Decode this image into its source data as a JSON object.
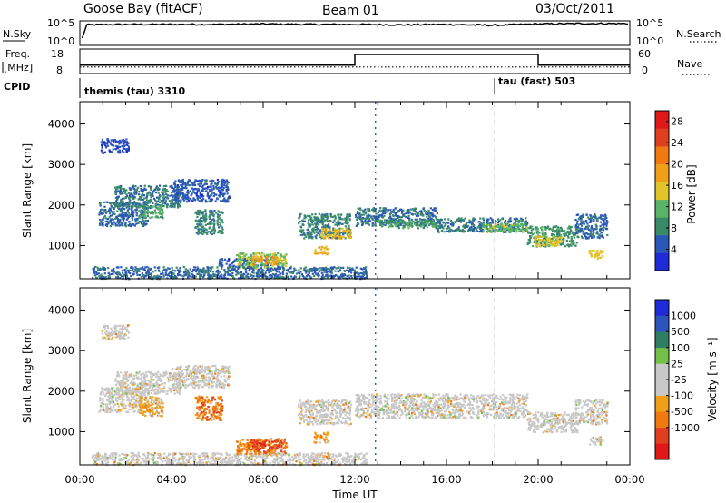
{
  "header": {
    "station": "Goose Bay (fitACF)",
    "beam": "Beam 01",
    "date": "03/Oct/2011"
  },
  "panels": {
    "nsky": {
      "label": "N.Sky",
      "tick_hi": "10^5",
      "tick_lo": "10^0"
    },
    "nsearch": {
      "label": "N.Search",
      "tick_hi": "10^5",
      "tick_lo": "10^0"
    },
    "freq": {
      "label_1": "Freq.",
      "label_2": "[MHz]",
      "tick_hi": "18",
      "tick_lo": "8"
    },
    "nave": {
      "label": "Nave",
      "tick_hi": "60",
      "tick_lo": "0"
    },
    "cpid": {
      "label": "CPID",
      "mode_1": "themis (tau) 3310",
      "mode_2": "tau (fast) 503"
    }
  },
  "colors": {
    "power": [
      "#1e2bd6",
      "#2b58b8",
      "#3a8a6a",
      "#5ab468",
      "#e0c428",
      "#f0a018",
      "#f07a10",
      "#e04020",
      "#e01818"
    ],
    "velocity": [
      "#1e2bd6",
      "#2c55bc",
      "#2f7d62",
      "#72c04a",
      "#c8c8c8",
      "#c8c8c8",
      "#f0a018",
      "#f07a10",
      "#e04020",
      "#e01818"
    ],
    "gray_stripe": "#c8c8c8"
  },
  "chart_data": [
    {
      "type": "line",
      "name": "status-panels",
      "x_unit": "hours UT",
      "series": [
        {
          "id": "nsky",
          "x": [
            0.1,
            0.3,
            2,
            4,
            6,
            8,
            10,
            12,
            14,
            16,
            18,
            20,
            22,
            24
          ],
          "values": [
            1.2,
            4.3,
            4.4,
            4.4,
            4.4,
            4.5,
            4.4,
            4.4,
            4.3,
            4.4,
            4.2,
            4.5,
            4.6,
            4.6
          ]
        },
        {
          "id": "nave",
          "x": [
            0,
            12,
            12,
            20,
            20,
            24
          ],
          "values": [
            20,
            20,
            48,
            48,
            20,
            20
          ]
        },
        {
          "id": "freq",
          "x": [
            0,
            12,
            12,
            20,
            20,
            24
          ],
          "values": [
            10.5,
            10.5,
            10.5,
            10.5,
            10.5,
            10.5
          ]
        }
      ],
      "cpid_change_hour": 18.1
    },
    {
      "type": "heatmap",
      "name": "power",
      "title": "",
      "ylabel": "Slant Range [km]",
      "xlabel": "",
      "xlim": [
        0,
        24
      ],
      "ylim": [
        180,
        4550
      ],
      "x_ticks": [
        "00:00",
        "04:00",
        "08:00",
        "12:00",
        "16:00",
        "20:00",
        "00:00"
      ],
      "y_ticks": [
        1000,
        2000,
        3000,
        4000
      ],
      "colorbar": {
        "label": "Power [dB]",
        "ticks": [
          4,
          8,
          12,
          16,
          20,
          24,
          28
        ],
        "range": [
          0,
          30
        ]
      },
      "regions": [
        {
          "t0": 0.8,
          "t1": 3.0,
          "r0": 1500,
          "r1": 2100,
          "v": 6
        },
        {
          "t0": 1.5,
          "t1": 4.4,
          "r0": 1950,
          "r1": 2500,
          "v": 7
        },
        {
          "t0": 2.5,
          "t1": 3.6,
          "r0": 1700,
          "r1": 2000,
          "v": 10
        },
        {
          "t0": 4.0,
          "t1": 6.5,
          "r0": 2100,
          "r1": 2650,
          "v": 5
        },
        {
          "t0": 5.0,
          "t1": 6.2,
          "r0": 1300,
          "r1": 1900,
          "v": 8
        },
        {
          "t0": 6.0,
          "t1": 8.3,
          "r0": 500,
          "r1": 700,
          "v": 5
        },
        {
          "t0": 6.8,
          "t1": 9.0,
          "r0": 450,
          "r1": 850,
          "v": 13
        },
        {
          "t0": 7.5,
          "t1": 8.6,
          "r0": 550,
          "r1": 750,
          "v": 19
        },
        {
          "t0": 9.5,
          "t1": 11.8,
          "r0": 1200,
          "r1": 1800,
          "v": 8
        },
        {
          "t0": 10.5,
          "t1": 11.8,
          "r0": 1200,
          "r1": 1450,
          "v": 16
        },
        {
          "t0": 10.2,
          "t1": 10.8,
          "r0": 800,
          "r1": 1000,
          "v": 17
        },
        {
          "t0": 12.0,
          "t1": 15.6,
          "r0": 1500,
          "r1": 1950,
          "v": 7
        },
        {
          "t0": 13.0,
          "t1": 15.5,
          "r0": 1450,
          "r1": 1650,
          "v": 10
        },
        {
          "t0": 15.5,
          "t1": 19.5,
          "r0": 1350,
          "r1": 1700,
          "v": 7
        },
        {
          "t0": 17.5,
          "t1": 19.5,
          "r0": 1350,
          "r1": 1550,
          "v": 12
        },
        {
          "t0": 19.5,
          "t1": 21.7,
          "r0": 1000,
          "r1": 1500,
          "v": 9
        },
        {
          "t0": 19.8,
          "t1": 21.0,
          "r0": 1000,
          "r1": 1250,
          "v": 15
        },
        {
          "t0": 21.6,
          "t1": 23.0,
          "r0": 1200,
          "r1": 1800,
          "v": 6
        },
        {
          "t0": 22.2,
          "t1": 22.8,
          "r0": 700,
          "r1": 900,
          "v": 16
        },
        {
          "t0": 0.5,
          "t1": 12.5,
          "r0": 200,
          "r1": 500,
          "v": 6
        },
        {
          "t0": 0.9,
          "t1": 2.1,
          "r0": 3300,
          "r1": 3650,
          "v": 4
        }
      ],
      "stripes": [
        {
          "t": 12.9,
          "r0": 200,
          "r1": 4550,
          "v": 6
        },
        {
          "t": 18.1,
          "r0": 200,
          "r1": 4550,
          "gray": true
        }
      ]
    },
    {
      "type": "heatmap",
      "name": "velocity",
      "title": "",
      "ylabel": "Slant Range [km]",
      "xlabel": "Time UT",
      "xlim": [
        0,
        24
      ],
      "ylim": [
        180,
        4550
      ],
      "x_ticks": [
        "00:00",
        "04:00",
        "08:00",
        "12:00",
        "16:00",
        "20:00",
        "00:00"
      ],
      "y_ticks": [
        1000,
        2000,
        3000,
        4000
      ],
      "colorbar": {
        "label": "Velocity [m s⁻¹]",
        "ticks": [
          "1000",
          "500",
          "100",
          "25",
          "-25",
          "-100",
          "-500",
          "-1000"
        ]
      },
      "regions": [
        {
          "t0": 0.8,
          "t1": 3.0,
          "r0": 1500,
          "r1": 2100,
          "c": 4
        },
        {
          "t0": 1.5,
          "t1": 4.4,
          "r0": 1950,
          "r1": 2500,
          "c": 4
        },
        {
          "t0": 4.0,
          "t1": 6.5,
          "r0": 2100,
          "r1": 2650,
          "c": 4
        },
        {
          "t0": 2.5,
          "t1": 3.6,
          "r0": 1400,
          "r1": 1900,
          "c": 6
        },
        {
          "t0": 5.0,
          "t1": 6.2,
          "r0": 1300,
          "r1": 1900,
          "c": 7
        },
        {
          "t0": 6.8,
          "t1": 9.0,
          "r0": 450,
          "r1": 850,
          "c": 7
        },
        {
          "t0": 7.4,
          "t1": 8.8,
          "r0": 550,
          "r1": 800,
          "c": 8
        },
        {
          "t0": 9.5,
          "t1": 11.8,
          "r0": 1200,
          "r1": 1800,
          "c": 4
        },
        {
          "t0": 10.2,
          "t1": 10.8,
          "r0": 750,
          "r1": 1000,
          "c": 6
        },
        {
          "t0": 12.0,
          "t1": 19.5,
          "r0": 1350,
          "r1": 1950,
          "c": 4
        },
        {
          "t0": 19.5,
          "t1": 21.7,
          "r0": 1000,
          "r1": 1500,
          "c": 4
        },
        {
          "t0": 21.6,
          "t1": 23.0,
          "r0": 1200,
          "r1": 1800,
          "c": 4
        },
        {
          "t0": 22.2,
          "t1": 22.8,
          "r0": 700,
          "r1": 900,
          "c": 4
        },
        {
          "t0": 0.5,
          "t1": 12.5,
          "r0": 200,
          "r1": 500,
          "c": 4
        },
        {
          "t0": 0.9,
          "t1": 2.1,
          "r0": 3300,
          "r1": 3650,
          "c": 4
        }
      ],
      "stripes": [
        {
          "t": 12.9,
          "r0": 200,
          "r1": 4550,
          "c": 0
        },
        {
          "t": 18.1,
          "r0": 200,
          "r1": 4550,
          "gray": true
        }
      ]
    }
  ]
}
